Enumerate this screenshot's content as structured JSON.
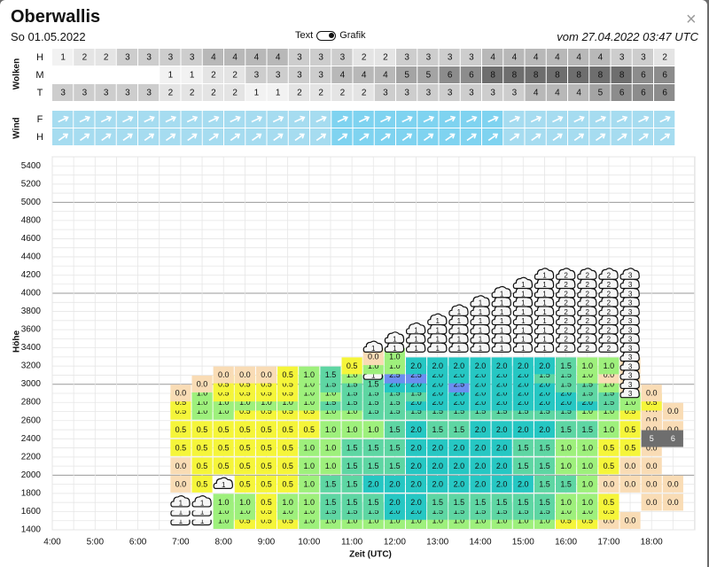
{
  "header": {
    "title": "Oberwallis",
    "date": "So 01.05.2022",
    "toggle_text": "Text",
    "toggle_graphic": "Grafik",
    "run_label": "vom 27.04.2022 03:47 UTC",
    "close_symbol": "×"
  },
  "clouds_panel": {
    "label": "Wolken",
    "rows": [
      {
        "name": "H",
        "values": [
          1,
          2,
          2,
          3,
          3,
          3,
          3,
          4,
          4,
          4,
          4,
          3,
          3,
          3,
          2,
          2,
          3,
          3,
          3,
          3,
          4,
          4,
          4,
          4,
          4,
          4,
          3,
          3,
          2
        ]
      },
      {
        "name": "M",
        "values": [
          null,
          null,
          null,
          null,
          null,
          1,
          1,
          2,
          2,
          3,
          3,
          3,
          3,
          4,
          4,
          4,
          5,
          5,
          6,
          6,
          8,
          8,
          8,
          8,
          8,
          8,
          8,
          6,
          6
        ]
      },
      {
        "name": "T",
        "values": [
          3,
          3,
          3,
          3,
          3,
          2,
          2,
          2,
          2,
          1,
          1,
          2,
          2,
          2,
          2,
          3,
          3,
          3,
          3,
          3,
          3,
          3,
          4,
          4,
          4,
          5,
          6,
          6,
          6
        ]
      }
    ],
    "colors": {
      "1": "#f2f2f2",
      "2": "#e4e4e4",
      "3": "#cdcdcd",
      "4": "#b8b8b8",
      "5": "#a4a4a4",
      "6": "#8c8c8c",
      "8": "#6e6e6e"
    }
  },
  "wind_panel": {
    "label": "Wind",
    "rows": [
      {
        "name": "F",
        "icon": "wind-arrow-icon"
      },
      {
        "name": "H",
        "icon": "wind-arrow-icon"
      }
    ],
    "column_count": 29,
    "colors": {
      "light": "#a6dcf0",
      "medium": "#7fd3f0"
    }
  },
  "chart_data": {
    "type": "heatmap",
    "xlabel": "Zeit (UTC)",
    "ylabel": "Höhe",
    "x_ticks": [
      "4:00",
      "5:00",
      "6:00",
      "7:00",
      "8:00",
      "9:00",
      "10:00",
      "11:00",
      "12:00",
      "13:00",
      "14:00",
      "15:00",
      "16:00",
      "17:00",
      "18:00"
    ],
    "y_ticks": [
      1400,
      1600,
      1800,
      2000,
      2200,
      2400,
      2600,
      2800,
      3000,
      3200,
      3400,
      3600,
      3800,
      4000,
      4200,
      4400,
      4600,
      4800,
      5000,
      5200,
      5400
    ],
    "columns": [
      "6:30",
      "7:00",
      "7:30",
      "8:00",
      "8:30",
      "9:00",
      "9:30",
      "10:00",
      "10:30",
      "11:00",
      "11:30",
      "12:00",
      "12:30",
      "13:00",
      "13:30",
      "14:00",
      "14:30",
      "15:00",
      "15:30",
      "16:00",
      "16:30",
      "17:00",
      "17:30",
      "18:00",
      "18:30"
    ],
    "altitudes": [
      1500,
      1600,
      1700,
      1800,
      1900,
      2000,
      2100,
      2200,
      2300,
      2400,
      2500,
      2600,
      2700,
      2800,
      2900,
      3000,
      3100,
      3200,
      3300,
      3400,
      3500,
      3600,
      3700,
      3800,
      3900,
      4000,
      4100,
      4200,
      4300,
      4400,
      4500,
      4600,
      4700,
      4800,
      4900,
      5000
    ],
    "values": [
      {
        "altitude": 1500,
        "cells": [
          null,
          "c1",
          "c1",
          "1.0",
          "0.5",
          "0.5",
          "0.5",
          "1.0",
          "1.0",
          "1.0",
          "1.0",
          "1.0",
          "1.0",
          "1.0",
          "1.0",
          "1.0",
          "1.0",
          "1.0",
          "1.0",
          "0.5",
          "0.5",
          "0.0",
          "0.0",
          null,
          null
        ]
      },
      {
        "altitude": 1600,
        "cells": [
          null,
          "c1",
          "c1",
          "1.0",
          "1.0",
          "0.5",
          "1.0",
          "1.0",
          "1.5",
          "1.5",
          "1.5",
          "2.0",
          "2.0",
          "1.5",
          "1.5",
          "1.5",
          "1.5",
          "1.5",
          "1.5",
          "1.0",
          "1.0",
          "0.5",
          null,
          null,
          null
        ]
      },
      {
        "altitude": 1700,
        "cells": [
          null,
          "c1",
          "c1",
          "1.0",
          "1.0",
          "0.5",
          "1.0",
          "1.0",
          "1.5",
          "1.5",
          "1.5",
          "2.0",
          "2.0",
          "1.5",
          "1.5",
          "1.5",
          "1.5",
          "1.5",
          "1.5",
          "1.0",
          "1.0",
          "0.5",
          null,
          "0.0",
          "0.0"
        ]
      },
      {
        "altitude": 1800,
        "cells": [
          null,
          null,
          null,
          null,
          null,
          null,
          null,
          null,
          null,
          null,
          null,
          null,
          null,
          null,
          null,
          null,
          null,
          null,
          null,
          null,
          null,
          null,
          null,
          null,
          null
        ]
      },
      {
        "altitude": 1900,
        "cells": [
          null,
          "0.0",
          "0.5",
          "c1",
          "0.5",
          "0.5",
          "0.5",
          "1.0",
          "1.5",
          "1.5",
          "2.0",
          "2.0",
          "2.0",
          "2.0",
          "2.0",
          "2.0",
          "2.0",
          "2.0",
          "1.5",
          "1.5",
          "1.0",
          "0.0",
          "0.0",
          "0.0",
          "0.0"
        ]
      },
      {
        "altitude": 2100,
        "cells": [
          null,
          "0.0",
          "0.5",
          "0.5",
          "0.5",
          "0.5",
          "0.5",
          "1.0",
          "1.0",
          "1.5",
          "1.5",
          "1.5",
          "2.0",
          "2.0",
          "2.0",
          "2.0",
          "2.0",
          "1.5",
          "1.5",
          "1.0",
          "1.0",
          "0.5",
          "0.0",
          "0.0",
          null
        ]
      },
      {
        "altitude": 2300,
        "cells": [
          null,
          "0.5",
          "0.5",
          "0.5",
          "0.5",
          "0.5",
          "0.5",
          "1.0",
          "1.0",
          "1.5",
          "1.5",
          "1.5",
          "2.0",
          "2.0",
          "2.0",
          "2.0",
          "2.0",
          "1.5",
          "1.5",
          "1.0",
          "1.0",
          "0.5",
          "0.5",
          "0.0",
          null
        ]
      },
      {
        "altitude": 2500,
        "cells": [
          null,
          "0.5",
          "0.5",
          "0.5",
          "0.5",
          "0.5",
          "0.5",
          "0.5",
          "1.0",
          "1.0",
          "1.0",
          "1.5",
          "2.0",
          "1.5",
          "1.5",
          "2.0",
          "2.0",
          "2.0",
          "2.0",
          "1.5",
          "1.5",
          "1.0",
          "0.5",
          "0.0",
          "0.0"
        ]
      },
      {
        "altitude": 2700,
        "cells": [
          null,
          "0.5",
          "1.0",
          "1.0",
          "0.5",
          "0.5",
          "0.5",
          "0.5",
          "1.0",
          "1.0",
          "1.5",
          "1.5",
          "1.5",
          "1.5",
          "1.5",
          "1.5",
          "1.5",
          "1.5",
          "1.5",
          "1.5",
          "1.0",
          "1.0",
          "0.5",
          "0.0",
          "0.0"
        ]
      }
    ],
    "legend_note": ""
  }
}
